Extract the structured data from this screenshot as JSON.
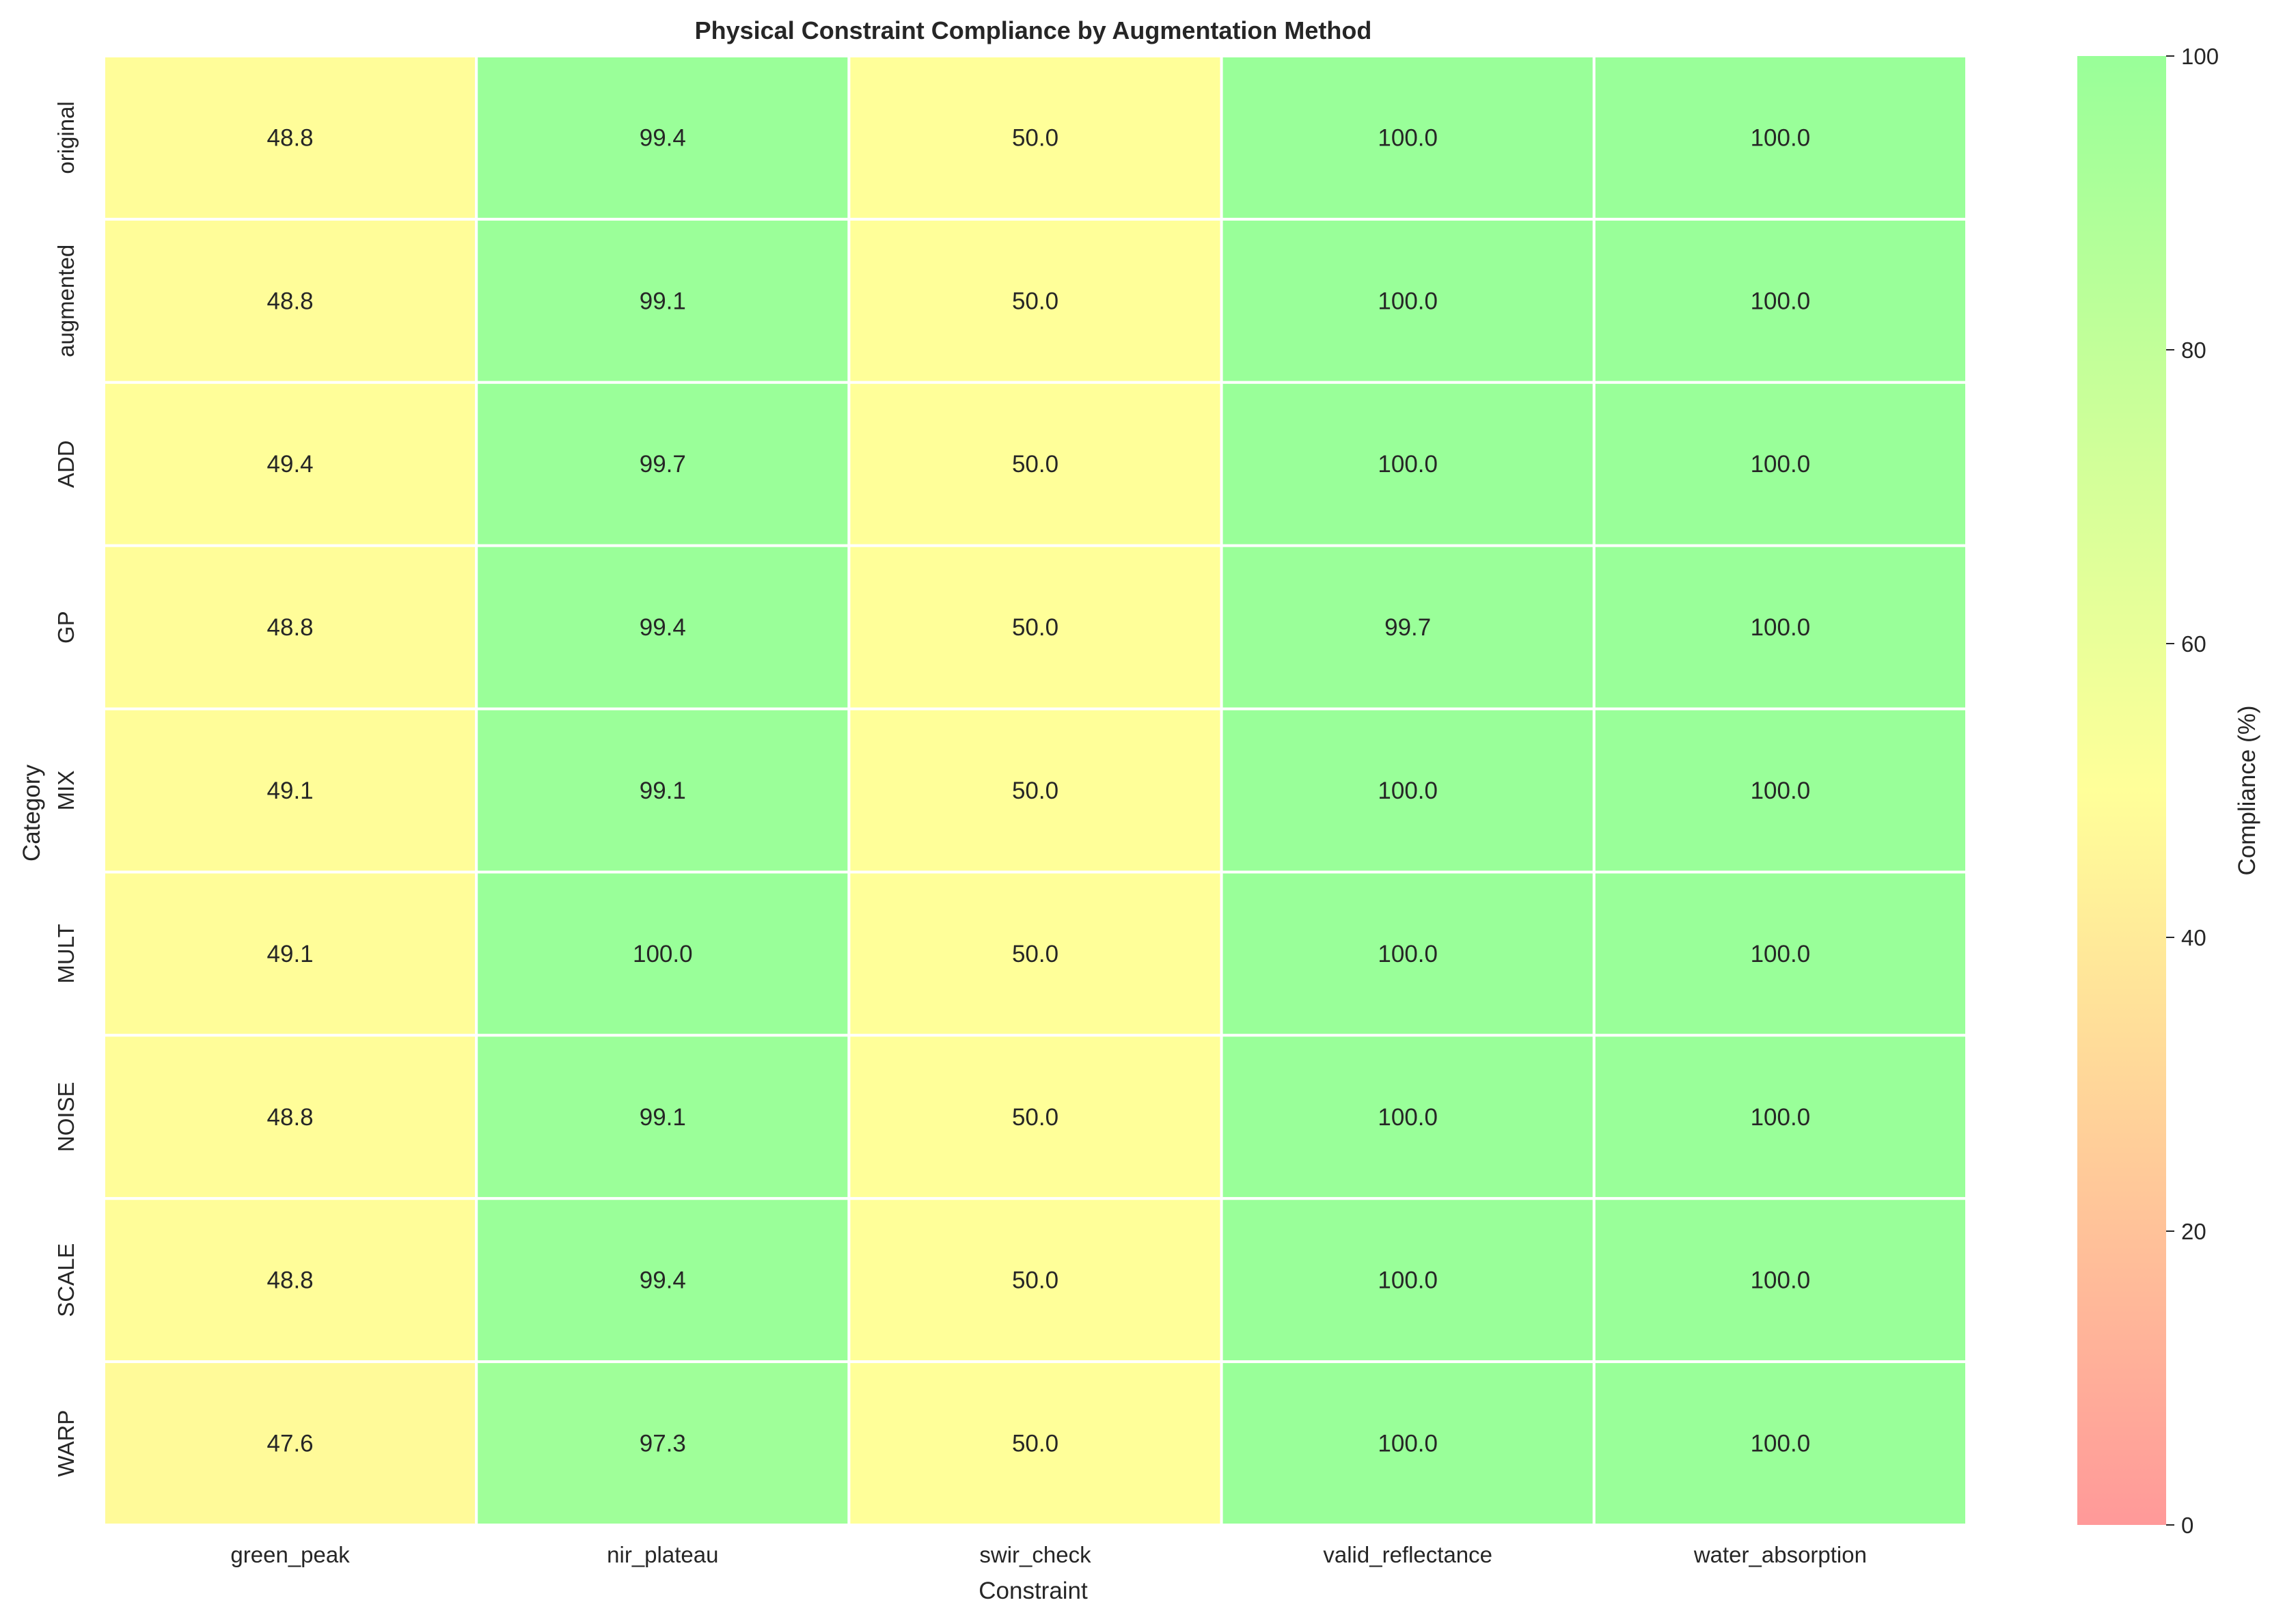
{
  "chart_data": {
    "type": "heatmap",
    "title": "Physical Constraint Compliance by Augmentation Method",
    "xlabel": "Constraint",
    "ylabel": "Category",
    "x": [
      "green_peak",
      "nir_plateau",
      "swir_check",
      "valid_reflectance",
      "water_absorption"
    ],
    "y": [
      "original",
      "augmented",
      "ADD",
      "GP",
      "MIX",
      "MULT",
      "NOISE",
      "SCALE",
      "WARP"
    ],
    "values": [
      [
        48.8,
        99.4,
        50.0,
        100.0,
        100.0
      ],
      [
        48.8,
        99.1,
        50.0,
        100.0,
        100.0
      ],
      [
        49.4,
        99.7,
        50.0,
        100.0,
        100.0
      ],
      [
        48.8,
        99.4,
        50.0,
        99.7,
        100.0
      ],
      [
        49.1,
        99.1,
        50.0,
        100.0,
        100.0
      ],
      [
        49.1,
        100.0,
        50.0,
        100.0,
        100.0
      ],
      [
        48.8,
        99.1,
        50.0,
        100.0,
        100.0
      ],
      [
        48.8,
        99.4,
        50.0,
        100.0,
        100.0
      ],
      [
        47.6,
        97.3,
        50.0,
        100.0,
        100.0
      ]
    ],
    "value_format": "0.1f",
    "colorbar": {
      "label": "Compliance (%)",
      "range": [
        0,
        100
      ],
      "ticks": [
        0,
        20,
        40,
        60,
        80,
        100
      ],
      "colors": [
        "#ff9999",
        "#ffff99",
        "#99ff99"
      ]
    },
    "grid": false,
    "cell_border_color": "#ffffff"
  }
}
